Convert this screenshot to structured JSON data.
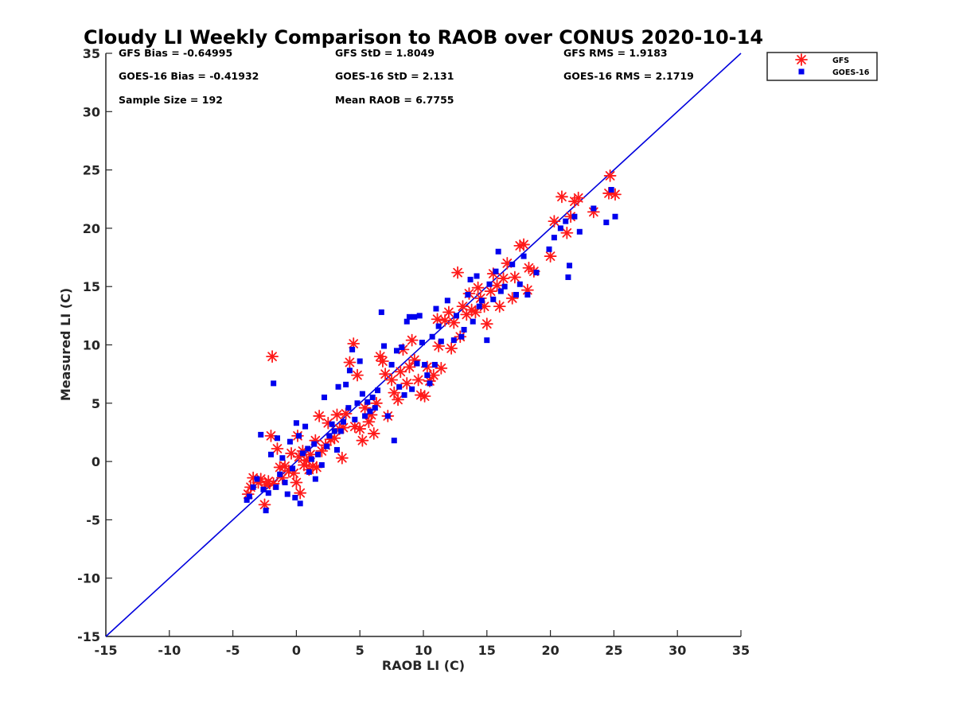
{
  "chart_data": {
    "type": "scatter",
    "title": "Cloudy LI Weekly Comparison to RAOB over CONUS 2020-10-14",
    "xlabel": "RAOB LI (C)",
    "ylabel": "Measured LI (C)",
    "xlim": [
      -15,
      35
    ],
    "ylim": [
      -15,
      35
    ],
    "xticks": [
      -15,
      -10,
      -5,
      0,
      5,
      10,
      15,
      20,
      25,
      30,
      35
    ],
    "yticks": [
      -15,
      -10,
      -5,
      0,
      5,
      10,
      15,
      20,
      25,
      30,
      35
    ],
    "grid": false,
    "legend_position": "top-right-outside",
    "reference_line": {
      "name": "1:1 line",
      "from": [
        -15,
        -15
      ],
      "to": [
        35,
        35
      ],
      "color": "#0000dd"
    },
    "stats": [
      [
        "GFS Bias = -0.64995",
        "GFS StD = 1.8049",
        "GFS RMS = 1.9183"
      ],
      [
        "GOES-16 Bias = -0.41932",
        "GOES-16 StD = 2.131",
        "GOES-16 RMS = 2.1719"
      ],
      [
        "Sample Size = 192",
        "Mean RAOB = 6.7755"
      ]
    ],
    "series": [
      {
        "name": "GFS",
        "marker": "asterisk",
        "color": "#ff1a1a",
        "points": [
          [
            -3.8,
            -2.8
          ],
          [
            -3.6,
            -2.2
          ],
          [
            -3.4,
            -1.4
          ],
          [
            -3.0,
            -1.8
          ],
          [
            -2.8,
            -1.5
          ],
          [
            -2.5,
            -3.7
          ],
          [
            -2.4,
            -2.0
          ],
          [
            -2.2,
            -1.7
          ],
          [
            -2.0,
            2.2
          ],
          [
            -1.9,
            9.0
          ],
          [
            -1.8,
            -1.9
          ],
          [
            -1.5,
            1.1
          ],
          [
            -1.3,
            -0.5
          ],
          [
            -1.1,
            -1.4
          ],
          [
            -0.9,
            -0.4
          ],
          [
            -0.6,
            -0.8
          ],
          [
            -0.4,
            0.7
          ],
          [
            -0.2,
            -1.0
          ],
          [
            0.0,
            -1.8
          ],
          [
            0.1,
            2.2
          ],
          [
            0.2,
            0.4
          ],
          [
            0.3,
            -2.7
          ],
          [
            0.5,
            0.9
          ],
          [
            0.6,
            -0.3
          ],
          [
            0.8,
            0.1
          ],
          [
            1.0,
            -0.7
          ],
          [
            1.1,
            0.6
          ],
          [
            1.3,
            -0.4
          ],
          [
            1.5,
            1.8
          ],
          [
            1.6,
            -0.5
          ],
          [
            1.8,
            3.9
          ],
          [
            2.0,
            0.9
          ],
          [
            2.3,
            1.4
          ],
          [
            2.5,
            3.3
          ],
          [
            2.7,
            1.9
          ],
          [
            3.0,
            2.0
          ],
          [
            3.2,
            4.0
          ],
          [
            3.4,
            2.8
          ],
          [
            3.6,
            0.3
          ],
          [
            3.7,
            2.9
          ],
          [
            3.9,
            4.1
          ],
          [
            4.2,
            8.5
          ],
          [
            4.5,
            10.1
          ],
          [
            4.6,
            3.0
          ],
          [
            4.8,
            7.4
          ],
          [
            5.0,
            2.8
          ],
          [
            5.2,
            1.8
          ],
          [
            5.4,
            4.6
          ],
          [
            5.7,
            3.4
          ],
          [
            5.9,
            4.0
          ],
          [
            6.1,
            2.4
          ],
          [
            6.3,
            5.0
          ],
          [
            6.6,
            9.0
          ],
          [
            6.8,
            8.6
          ],
          [
            7.0,
            7.5
          ],
          [
            7.2,
            3.9
          ],
          [
            7.5,
            7.0
          ],
          [
            7.7,
            5.9
          ],
          [
            8.0,
            5.3
          ],
          [
            8.2,
            7.7
          ],
          [
            8.4,
            9.6
          ],
          [
            8.7,
            6.7
          ],
          [
            8.9,
            8.1
          ],
          [
            9.1,
            10.4
          ],
          [
            9.3,
            8.7
          ],
          [
            9.6,
            7.0
          ],
          [
            9.8,
            5.7
          ],
          [
            10.1,
            5.6
          ],
          [
            10.3,
            8.1
          ],
          [
            10.5,
            6.9
          ],
          [
            10.8,
            7.4
          ],
          [
            11.1,
            12.2
          ],
          [
            11.2,
            9.9
          ],
          [
            11.4,
            8.0
          ],
          [
            11.7,
            12.1
          ],
          [
            12.0,
            12.8
          ],
          [
            12.2,
            9.7
          ],
          [
            12.4,
            11.9
          ],
          [
            12.7,
            16.2
          ],
          [
            12.9,
            10.7
          ],
          [
            13.1,
            13.3
          ],
          [
            13.4,
            12.6
          ],
          [
            13.6,
            14.4
          ],
          [
            13.8,
            13.0
          ],
          [
            14.1,
            12.8
          ],
          [
            14.3,
            14.9
          ],
          [
            14.5,
            14.0
          ],
          [
            14.8,
            13.3
          ],
          [
            15.0,
            11.8
          ],
          [
            15.3,
            14.6
          ],
          [
            15.5,
            16.1
          ],
          [
            15.8,
            15.1
          ],
          [
            16.0,
            13.3
          ],
          [
            16.3,
            15.7
          ],
          [
            16.6,
            17.0
          ],
          [
            17.0,
            14.0
          ],
          [
            17.2,
            15.8
          ],
          [
            17.6,
            18.5
          ],
          [
            17.9,
            18.6
          ],
          [
            18.2,
            14.7
          ],
          [
            18.3,
            16.6
          ],
          [
            18.7,
            16.3
          ],
          [
            20.0,
            17.6
          ],
          [
            20.3,
            20.6
          ],
          [
            20.9,
            22.7
          ],
          [
            21.3,
            19.6
          ],
          [
            21.6,
            21.0
          ],
          [
            21.9,
            22.3
          ],
          [
            22.2,
            22.6
          ],
          [
            23.4,
            21.4
          ],
          [
            24.6,
            23.0
          ],
          [
            24.7,
            24.5
          ],
          [
            25.1,
            22.9
          ]
        ]
      },
      {
        "name": "GOES-16",
        "marker": "square",
        "color": "#0000ee",
        "points": [
          [
            -3.9,
            -3.3
          ],
          [
            -3.7,
            -3.0
          ],
          [
            -3.4,
            -2.2
          ],
          [
            -3.1,
            -1.5
          ],
          [
            -2.8,
            2.3
          ],
          [
            -2.6,
            -2.4
          ],
          [
            -2.4,
            -4.2
          ],
          [
            -2.2,
            -2.7
          ],
          [
            -2.0,
            0.6
          ],
          [
            -1.8,
            6.7
          ],
          [
            -1.6,
            -2.2
          ],
          [
            -1.5,
            2.0
          ],
          [
            -1.3,
            -1.1
          ],
          [
            -1.1,
            0.3
          ],
          [
            -0.9,
            -1.8
          ],
          [
            -0.7,
            -2.8
          ],
          [
            -0.5,
            1.7
          ],
          [
            -0.3,
            -0.6
          ],
          [
            -0.1,
            -3.1
          ],
          [
            0.0,
            3.3
          ],
          [
            0.2,
            2.2
          ],
          [
            0.3,
            -3.6
          ],
          [
            0.5,
            0.7
          ],
          [
            0.7,
            3.0
          ],
          [
            0.9,
            1.1
          ],
          [
            1.0,
            -0.9
          ],
          [
            1.2,
            0.2
          ],
          [
            1.4,
            1.5
          ],
          [
            1.5,
            -1.5
          ],
          [
            1.7,
            0.6
          ],
          [
            2.0,
            -0.3
          ],
          [
            2.2,
            5.5
          ],
          [
            2.4,
            1.3
          ],
          [
            2.6,
            2.2
          ],
          [
            2.8,
            3.2
          ],
          [
            3.0,
            2.6
          ],
          [
            3.2,
            1.0
          ],
          [
            3.3,
            6.4
          ],
          [
            3.5,
            2.6
          ],
          [
            3.7,
            3.4
          ],
          [
            3.9,
            6.6
          ],
          [
            4.1,
            4.6
          ],
          [
            4.2,
            7.8
          ],
          [
            4.4,
            9.6
          ],
          [
            4.6,
            3.6
          ],
          [
            4.8,
            5.0
          ],
          [
            5.0,
            8.6
          ],
          [
            5.2,
            5.8
          ],
          [
            5.4,
            3.9
          ],
          [
            5.6,
            5.1
          ],
          [
            5.8,
            4.3
          ],
          [
            6.0,
            5.5
          ],
          [
            6.2,
            4.6
          ],
          [
            6.4,
            6.1
          ],
          [
            6.7,
            12.8
          ],
          [
            6.9,
            9.9
          ],
          [
            7.2,
            3.9
          ],
          [
            7.5,
            8.3
          ],
          [
            7.7,
            1.8
          ],
          [
            7.9,
            9.5
          ],
          [
            8.1,
            6.4
          ],
          [
            8.3,
            9.8
          ],
          [
            8.5,
            5.7
          ],
          [
            8.7,
            12.0
          ],
          [
            8.9,
            12.4
          ],
          [
            9.1,
            6.2
          ],
          [
            9.3,
            12.4
          ],
          [
            9.5,
            8.4
          ],
          [
            9.7,
            12.5
          ],
          [
            9.9,
            10.2
          ],
          [
            10.1,
            8.3
          ],
          [
            10.3,
            7.4
          ],
          [
            10.5,
            6.7
          ],
          [
            10.7,
            10.7
          ],
          [
            10.9,
            8.3
          ],
          [
            11.0,
            13.1
          ],
          [
            11.2,
            11.6
          ],
          [
            11.4,
            10.3
          ],
          [
            11.9,
            13.8
          ],
          [
            12.4,
            10.4
          ],
          [
            12.6,
            12.5
          ],
          [
            13.0,
            10.7
          ],
          [
            13.2,
            11.3
          ],
          [
            13.5,
            14.3
          ],
          [
            13.7,
            15.6
          ],
          [
            13.9,
            12.0
          ],
          [
            14.2,
            15.9
          ],
          [
            14.4,
            13.3
          ],
          [
            14.6,
            13.8
          ],
          [
            15.0,
            10.4
          ],
          [
            15.2,
            15.2
          ],
          [
            15.5,
            13.9
          ],
          [
            15.7,
            16.3
          ],
          [
            15.9,
            18.0
          ],
          [
            16.1,
            14.6
          ],
          [
            16.4,
            15.0
          ],
          [
            17.0,
            16.9
          ],
          [
            17.3,
            14.3
          ],
          [
            17.6,
            15.2
          ],
          [
            17.9,
            17.6
          ],
          [
            18.2,
            14.3
          ],
          [
            18.9,
            16.2
          ],
          [
            19.9,
            18.2
          ],
          [
            20.3,
            19.2
          ],
          [
            20.8,
            20.0
          ],
          [
            21.2,
            20.6
          ],
          [
            21.4,
            15.8
          ],
          [
            21.5,
            16.8
          ],
          [
            21.9,
            21.0
          ],
          [
            22.3,
            19.7
          ],
          [
            23.4,
            21.7
          ],
          [
            24.4,
            20.5
          ],
          [
            24.8,
            23.3
          ],
          [
            25.1,
            21.0
          ]
        ]
      }
    ]
  }
}
